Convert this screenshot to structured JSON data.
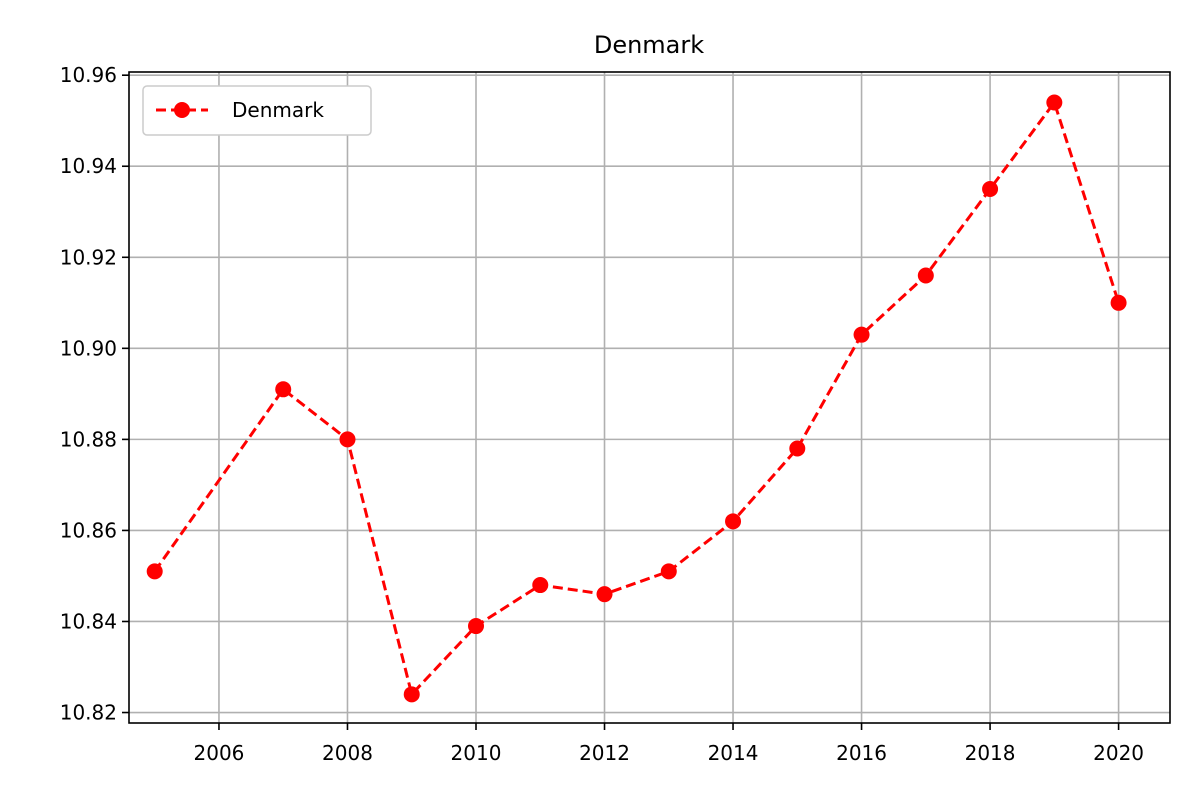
{
  "chart_data": {
    "type": "line",
    "title": "Denmark",
    "xlabel": "",
    "ylabel": "",
    "grid": true,
    "legend_placement": "top-left",
    "x_ticks": [
      2006,
      2008,
      2010,
      2012,
      2014,
      2016,
      2018,
      2020
    ],
    "y_ticks": [
      "10.82",
      "10.84",
      "10.86",
      "10.88",
      "10.90",
      "10.92",
      "10.94",
      "10.96"
    ],
    "xlim": [
      2004.6,
      2020.8
    ],
    "ylim": [
      10.8177,
      10.9607
    ],
    "series": [
      {
        "name": "Denmark",
        "color": "#ff0000",
        "line_style": "dashed",
        "marker": "circle",
        "x": [
          2005,
          2007,
          2008,
          2009,
          2010,
          2011,
          2012,
          2013,
          2014,
          2015,
          2016,
          2017,
          2018,
          2019,
          2020
        ],
        "y": [
          10.851,
          10.891,
          10.88,
          10.824,
          10.839,
          10.848,
          10.846,
          10.851,
          10.862,
          10.878,
          10.903,
          10.916,
          10.935,
          10.954,
          10.91
        ]
      }
    ]
  }
}
